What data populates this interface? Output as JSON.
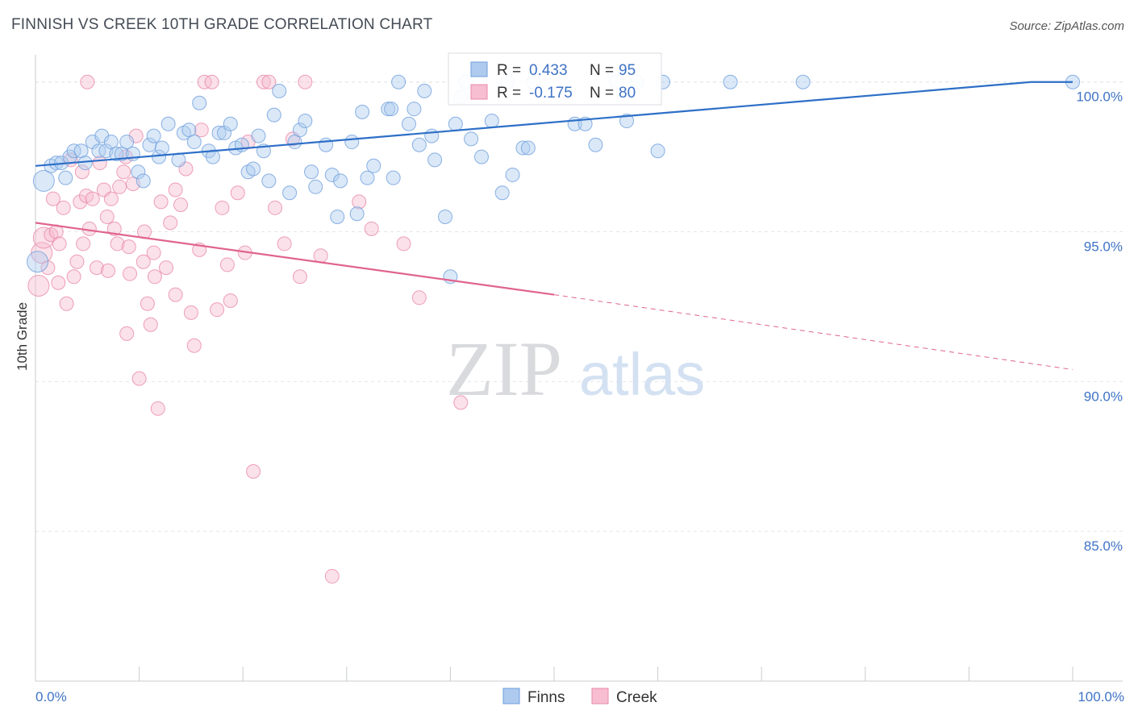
{
  "header": {
    "title": "FINNISH VS CREEK 10TH GRADE CORRELATION CHART",
    "source": "Source: ZipAtlas.com"
  },
  "watermark": {
    "part1": "ZIP",
    "part2": "atlas"
  },
  "colors": {
    "finns": "#6f9fdc",
    "finns_fill": "#aecbef",
    "finns_line": "#2d6fc7",
    "creek": "#e88aa8",
    "creek_fill": "#f7bdd0",
    "creek_line": "#e0648f",
    "tick_label": "#3f73c5",
    "grid": "#e3e6ea"
  },
  "chart_data": {
    "type": "scatter",
    "xlabel": "",
    "ylabel": "10th Grade",
    "xlim": [
      0,
      100
    ],
    "ylim": [
      80,
      100.8
    ],
    "x_tick_labels": [
      "0.0%",
      "100.0%"
    ],
    "y_ticks": [
      85,
      90,
      95,
      100
    ],
    "y_tick_labels": [
      "85.0%",
      "90.0%",
      "95.0%",
      "100.0%"
    ],
    "grid": true,
    "legend_position": "top-center",
    "legend": [
      {
        "series": "Finns",
        "r_label": "R =",
        "r_value": "0.433",
        "n_label": "N =",
        "n_value": "95"
      },
      {
        "series": "Creek",
        "r_label": "R =",
        "r_value": "-0.175",
        "n_label": "N =",
        "n_value": "80"
      }
    ],
    "series": [
      {
        "name": "Finns",
        "trend": {
          "x": [
            0,
            96
          ],
          "y": [
            97.2,
            100.0
          ],
          "dashed_to": null
        },
        "points": [
          [
            0.8,
            96.7
          ],
          [
            1.5,
            97.2
          ],
          [
            2,
            97.3
          ],
          [
            2.5,
            97.3
          ],
          [
            2.9,
            96.8
          ],
          [
            3.3,
            97.5
          ],
          [
            3.7,
            97.7
          ],
          [
            4.4,
            97.7
          ],
          [
            4.8,
            97.3
          ],
          [
            5.5,
            98.0
          ],
          [
            6.1,
            97.7
          ],
          [
            6.4,
            98.2
          ],
          [
            6.8,
            97.7
          ],
          [
            7.3,
            98.0
          ],
          [
            7.8,
            97.6
          ],
          [
            8.3,
            97.6
          ],
          [
            8.8,
            98.0
          ],
          [
            9.4,
            97.6
          ],
          [
            9.9,
            97.0
          ],
          [
            10.4,
            96.7
          ],
          [
            11.0,
            97.9
          ],
          [
            11.4,
            98.2
          ],
          [
            11.9,
            97.5
          ],
          [
            12.2,
            97.8
          ],
          [
            12.8,
            98.6
          ],
          [
            13.8,
            97.4
          ],
          [
            14.3,
            98.3
          ],
          [
            14.8,
            98.4
          ],
          [
            15.3,
            98.0
          ],
          [
            15.8,
            99.3
          ],
          [
            16.7,
            97.7
          ],
          [
            17.1,
            97.5
          ],
          [
            17.7,
            98.3
          ],
          [
            18.2,
            98.3
          ],
          [
            18.8,
            98.6
          ],
          [
            19.3,
            97.8
          ],
          [
            19.9,
            97.9
          ],
          [
            20.5,
            97.0
          ],
          [
            21.0,
            97.1
          ],
          [
            21.5,
            98.2
          ],
          [
            22.0,
            97.7
          ],
          [
            22.5,
            96.7
          ],
          [
            23.0,
            98.9
          ],
          [
            23.5,
            99.7
          ],
          [
            24.5,
            96.3
          ],
          [
            25.0,
            98.0
          ],
          [
            25.5,
            98.4
          ],
          [
            26.0,
            98.7
          ],
          [
            26.6,
            97.0
          ],
          [
            27.0,
            96.5
          ],
          [
            28.0,
            97.9
          ],
          [
            28.6,
            96.9
          ],
          [
            29.1,
            95.5
          ],
          [
            29.4,
            96.7
          ],
          [
            30.5,
            98.0
          ],
          [
            31.0,
            95.6
          ],
          [
            31.5,
            99.0
          ],
          [
            32.0,
            96.8
          ],
          [
            32.6,
            97.2
          ],
          [
            34.0,
            99.1
          ],
          [
            34.3,
            99.1
          ],
          [
            34.5,
            96.8
          ],
          [
            35.0,
            100.0
          ],
          [
            36.0,
            98.6
          ],
          [
            36.5,
            99.1
          ],
          [
            37.0,
            97.9
          ],
          [
            37.5,
            99.7
          ],
          [
            38.2,
            98.2
          ],
          [
            38.5,
            97.4
          ],
          [
            39.5,
            95.5
          ],
          [
            40.0,
            93.5
          ],
          [
            40.5,
            98.6
          ],
          [
            41.0,
            99.5
          ],
          [
            41.5,
            100.0
          ],
          [
            42.0,
            98.1
          ],
          [
            43.0,
            97.5
          ],
          [
            44.0,
            98.7
          ],
          [
            45.0,
            96.3
          ],
          [
            45.5,
            100.0
          ],
          [
            46.0,
            96.9
          ],
          [
            47.0,
            97.8
          ],
          [
            47.5,
            97.8
          ],
          [
            48.0,
            100.0
          ],
          [
            52.0,
            98.6
          ],
          [
            53.0,
            98.6
          ],
          [
            54.0,
            97.9
          ],
          [
            56.0,
            100.0
          ],
          [
            57.0,
            98.7
          ],
          [
            58.0,
            100.0
          ],
          [
            60.0,
            97.7
          ],
          [
            67.0,
            100.0
          ],
          [
            74.0,
            100.0
          ],
          [
            100.0,
            100.0
          ],
          [
            0.2,
            94.0
          ],
          [
            60.5,
            100.0
          ]
        ]
      },
      {
        "name": "Creek",
        "trend": {
          "x": [
            0,
            50
          ],
          "y": [
            95.3,
            92.9
          ],
          "dashed_to": [
            100,
            90.4
          ]
        },
        "points": [
          [
            0.3,
            93.2
          ],
          [
            0.6,
            94.3
          ],
          [
            0.8,
            94.8
          ],
          [
            1.2,
            93.8
          ],
          [
            1.5,
            94.9
          ],
          [
            1.7,
            96.1
          ],
          [
            2.0,
            95.0
          ],
          [
            2.3,
            94.6
          ],
          [
            2.7,
            95.8
          ],
          [
            3.0,
            92.6
          ],
          [
            3.4,
            97.4
          ],
          [
            3.7,
            93.5
          ],
          [
            4.0,
            94.0
          ],
          [
            4.3,
            96.0
          ],
          [
            4.6,
            94.6
          ],
          [
            4.9,
            96.2
          ],
          [
            5.2,
            95.1
          ],
          [
            5.5,
            96.1
          ],
          [
            5.9,
            93.8
          ],
          [
            6.2,
            97.3
          ],
          [
            6.6,
            96.4
          ],
          [
            7.0,
            93.7
          ],
          [
            7.3,
            96.1
          ],
          [
            7.6,
            95.1
          ],
          [
            7.9,
            94.6
          ],
          [
            8.1,
            96.5
          ],
          [
            8.5,
            97.0
          ],
          [
            8.8,
            91.6
          ],
          [
            9.1,
            93.6
          ],
          [
            9.4,
            96.6
          ],
          [
            9.7,
            98.2
          ],
          [
            10.0,
            90.1
          ],
          [
            10.4,
            94.0
          ],
          [
            10.8,
            92.6
          ],
          [
            11.1,
            91.9
          ],
          [
            11.4,
            94.3
          ],
          [
            11.8,
            89.1
          ],
          [
            12.1,
            96.0
          ],
          [
            12.6,
            93.8
          ],
          [
            13.0,
            95.3
          ],
          [
            13.5,
            92.9
          ],
          [
            14.0,
            95.9
          ],
          [
            14.5,
            97.1
          ],
          [
            15.0,
            92.3
          ],
          [
            15.3,
            91.2
          ],
          [
            15.8,
            94.4
          ],
          [
            16.3,
            100.0
          ],
          [
            17.0,
            100.0
          ],
          [
            17.5,
            92.4
          ],
          [
            18.0,
            95.8
          ],
          [
            18.8,
            92.7
          ],
          [
            19.5,
            96.3
          ],
          [
            20.2,
            94.3
          ],
          [
            21.0,
            87.0
          ],
          [
            22.0,
            100.0
          ],
          [
            22.5,
            100.0
          ],
          [
            23.1,
            95.8
          ],
          [
            24.0,
            94.6
          ],
          [
            24.8,
            98.1
          ],
          [
            25.5,
            93.5
          ],
          [
            26.0,
            100.0
          ],
          [
            27.5,
            94.2
          ],
          [
            28.6,
            83.5
          ],
          [
            31.2,
            96.0
          ],
          [
            32.4,
            95.1
          ],
          [
            35.5,
            94.6
          ],
          [
            37.0,
            92.8
          ],
          [
            41.0,
            89.3
          ],
          [
            5.0,
            100.0
          ],
          [
            9.0,
            94.5
          ],
          [
            11.5,
            93.5
          ],
          [
            13.5,
            96.4
          ],
          [
            16.0,
            98.4
          ],
          [
            18.5,
            93.9
          ],
          [
            20.5,
            98.0
          ],
          [
            2.2,
            93.3
          ],
          [
            4.5,
            97.0
          ],
          [
            6.9,
            95.5
          ],
          [
            8.7,
            97.5
          ],
          [
            10.5,
            95.0
          ]
        ]
      }
    ]
  }
}
